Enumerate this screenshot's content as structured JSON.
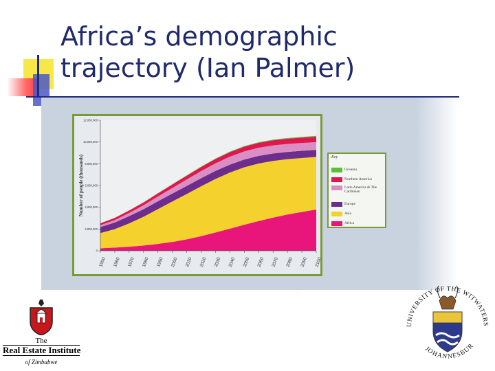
{
  "slide": {
    "title_line1": "Africa’s demographic",
    "title_line2": "trajectory (Ian Palmer)"
  },
  "chart_data": {
    "type": "area",
    "stacked": true,
    "x": [
      1950,
      1960,
      1970,
      1980,
      1990,
      2000,
      2010,
      2020,
      2030,
      2040,
      2050,
      2060,
      2070,
      2080,
      2090,
      2100
    ],
    "ylabel": "Number of people (thousands)",
    "ylim": [
      0,
      12000000
    ],
    "yticks": [
      "0",
      "2,000,000",
      "4,000,000",
      "6,000,000",
      "8,000,000",
      "10,000,000",
      "12,000,000"
    ],
    "yticks_values": [
      0,
      2000000,
      4000000,
      6000000,
      8000000,
      10000000,
      12000000
    ],
    "legend_title": "Key",
    "legend_placement": "right",
    "series": [
      {
        "name": "Africa",
        "color": "#e8157a",
        "values": [
          230000,
          290000,
          370000,
          480000,
          630000,
          810000,
          1050000,
          1340000,
          1680000,
          2030000,
          2390000,
          2730000,
          3050000,
          3330000,
          3570000,
          3790000
        ]
      },
      {
        "name": "Asia",
        "color": "#f4d12c",
        "values": [
          1400000,
          1700000,
          2150000,
          2650000,
          3200000,
          3720000,
          4170000,
          4590000,
          4920000,
          5160000,
          5280000,
          5290000,
          5210000,
          5090000,
          4960000,
          4840000
        ]
      },
      {
        "name": "Europe",
        "color": "#6c2d8c",
        "values": [
          550000,
          605000,
          660000,
          695000,
          720000,
          725000,
          740000,
          745000,
          740000,
          730000,
          715000,
          700000,
          685000,
          670000,
          660000,
          650000
        ]
      },
      {
        "name": "Latin America & The Caribbean",
        "color": "#d98fc4",
        "values": [
          170000,
          220000,
          290000,
          360000,
          440000,
          520000,
          590000,
          650000,
          700000,
          730000,
          750000,
          750000,
          740000,
          730000,
          720000,
          710000
        ]
      },
      {
        "name": "Northern America",
        "color": "#e0164e",
        "values": [
          170000,
          200000,
          230000,
          255000,
          280000,
          315000,
          345000,
          370000,
          395000,
          415000,
          435000,
          450000,
          465000,
          480000,
          490000,
          500000
        ]
      },
      {
        "name": "Oceania",
        "color": "#5bbf3a",
        "values": [
          13000,
          16000,
          20000,
          23000,
          27000,
          31000,
          37000,
          42000,
          47000,
          52000,
          56000,
          60000,
          64000,
          67000,
          70000,
          72000
        ]
      }
    ]
  },
  "logos": {
    "left_the": "The",
    "left_name": "Real Estate Institute",
    "left_country": "of Zimbabwe",
    "right_arc_top": "UNIVERSITY OF THE WITWATERSRAND",
    "right_arc_bottom": "JOHANNESBURG"
  }
}
